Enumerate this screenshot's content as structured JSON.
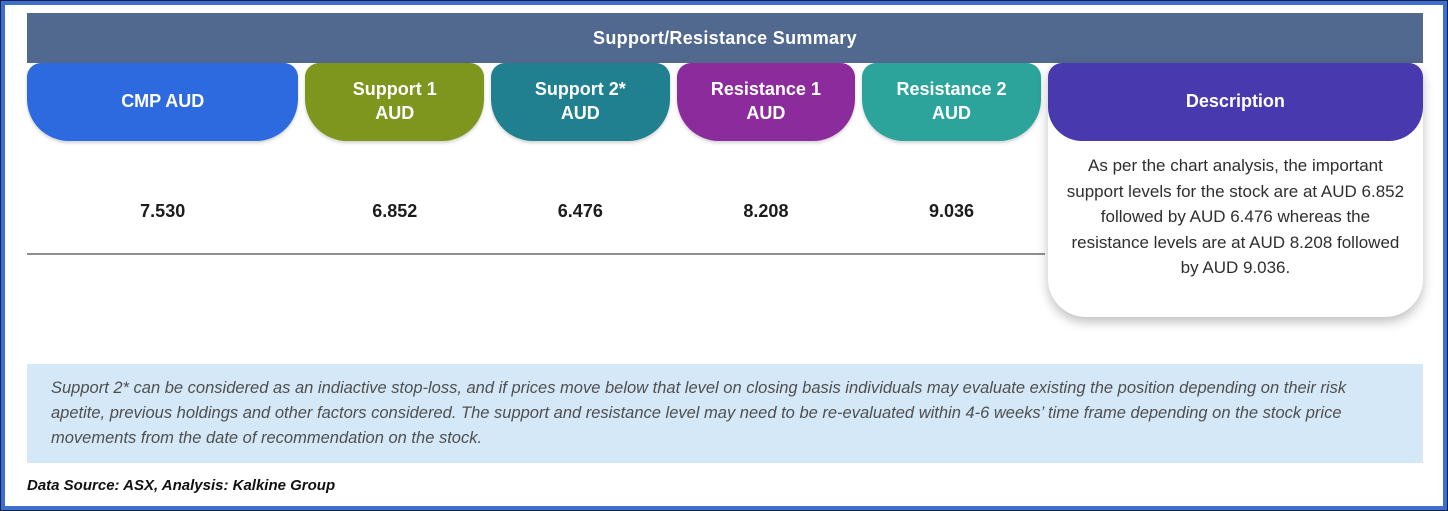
{
  "frame": {
    "accent_border_color": "#3f6fce",
    "outer_line_color": "#17234d"
  },
  "header": {
    "title": "Support/Resistance Summary",
    "bg": "#51688f"
  },
  "table": {
    "columns": [
      {
        "id": "cmp",
        "label_line1": "CMP AUD",
        "label_line2": "",
        "value": "7.530",
        "color": "#2d6ae0"
      },
      {
        "id": "support1",
        "label_line1": "Support 1",
        "label_line2": "AUD",
        "value": "6.852",
        "color": "#7e961e"
      },
      {
        "id": "support2",
        "label_line1": "Support 2*",
        "label_line2": "AUD",
        "value": "6.476",
        "color": "#20808f"
      },
      {
        "id": "resistance1",
        "label_line1": "Resistance 1",
        "label_line2": "AUD",
        "value": "8.208",
        "color": "#8c2c9c"
      },
      {
        "id": "resistance2",
        "label_line1": "Resistance 2",
        "label_line2": "AUD",
        "value": "9.036",
        "color": "#2ca49b"
      }
    ],
    "description": {
      "label": "Description",
      "color": "#4939ae",
      "text": "As per the chart analysis, the important support levels for the stock are at AUD 6.852 followed by AUD 6.476 whereas the resistance levels are at AUD 8.208 followed by AUD 9.036."
    }
  },
  "note": {
    "bg": "#d4e8f8",
    "text": "Support 2* can be considered as an indiactive stop-loss, and if prices move below that level on closing basis individuals may evaluate existing the position depending on their risk apetite, previous holdings and other factors considered. The support and resistance level may need to be re-evaluated within 4-6 weeks’ time frame depending on the stock price movements from  the date of recommendation on the stock."
  },
  "source": {
    "text": "Data Source: ASX, Analysis: Kalkine Group"
  }
}
